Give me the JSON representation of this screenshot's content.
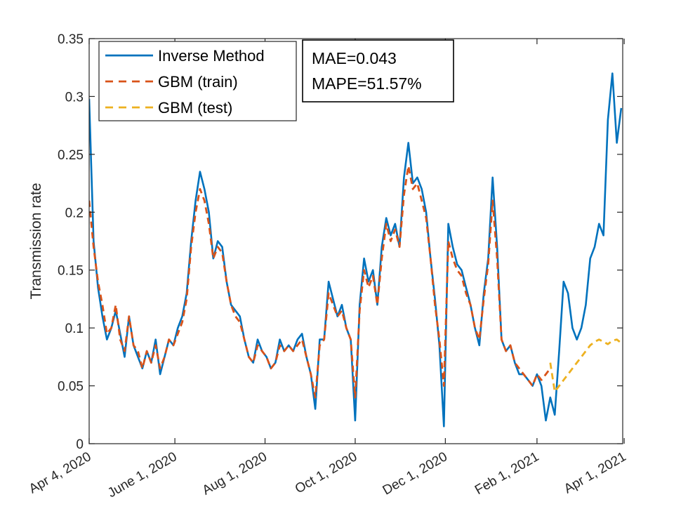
{
  "chart_data": {
    "type": "line",
    "title": "",
    "xlabel": "",
    "ylabel": "Transmission rate",
    "ylim": [
      0,
      0.35
    ],
    "xlim_days": [
      0,
      361
    ],
    "y_ticks": [
      0,
      0.05,
      0.1,
      0.15,
      0.2,
      0.25,
      0.3,
      0.35
    ],
    "y_tick_labels": [
      "0",
      "0.05",
      "0.1",
      "0.15",
      "0.2",
      "0.25",
      "0.3",
      "0.35"
    ],
    "x_ticks": [
      {
        "day": 0,
        "label": "Apr 4, 2020"
      },
      {
        "day": 58,
        "label": "June 1, 2020"
      },
      {
        "day": 119,
        "label": "Aug 1, 2020"
      },
      {
        "day": 180,
        "label": "Oct 1, 2020"
      },
      {
        "day": 241,
        "label": "Dec 1, 2020"
      },
      {
        "day": 303,
        "label": "Feb 1, 2021"
      },
      {
        "day": 362,
        "label": "Apr 1, 2021"
      }
    ],
    "legend_position": "top-left",
    "legend": [
      {
        "name": "Inverse Method",
        "color": "#0072BD",
        "style": "solid"
      },
      {
        "name": "GBM (train)",
        "color": "#D95319",
        "style": "dashed"
      },
      {
        "name": "GBM (test)",
        "color": "#EDB120",
        "style": "dashed"
      }
    ],
    "annotation": {
      "lines": [
        "MAE=0.043",
        "MAPE=51.57%"
      ]
    },
    "series": [
      {
        "name": "Inverse Method",
        "color": "#0072BD",
        "x": [
          0,
          3,
          6,
          9,
          12,
          15,
          18,
          21,
          24,
          27,
          30,
          33,
          36,
          39,
          42,
          45,
          48,
          51,
          54,
          57,
          60,
          63,
          66,
          69,
          72,
          75,
          78,
          81,
          84,
          87,
          90,
          93,
          96,
          99,
          102,
          105,
          108,
          111,
          114,
          117,
          120,
          123,
          126,
          129,
          132,
          135,
          138,
          141,
          144,
          147,
          150,
          153,
          156,
          159,
          162,
          165,
          168,
          171,
          174,
          177,
          180,
          183,
          186,
          189,
          192,
          195,
          198,
          201,
          204,
          207,
          210,
          213,
          216,
          219,
          222,
          225,
          228,
          231,
          234,
          237,
          240,
          243,
          246,
          249,
          252,
          255,
          258,
          261,
          264,
          267,
          270,
          273,
          276,
          279,
          282,
          285,
          288,
          291,
          294,
          297,
          300,
          303,
          306,
          309,
          312,
          315,
          318,
          321,
          324,
          327,
          330,
          333,
          336,
          339,
          342,
          345,
          348,
          351,
          354,
          357,
          360
        ],
        "values": [
          0.298,
          0.175,
          0.135,
          0.11,
          0.09,
          0.1,
          0.115,
          0.095,
          0.075,
          0.11,
          0.085,
          0.075,
          0.065,
          0.08,
          0.07,
          0.09,
          0.06,
          0.075,
          0.09,
          0.085,
          0.1,
          0.11,
          0.13,
          0.175,
          0.21,
          0.235,
          0.22,
          0.2,
          0.16,
          0.175,
          0.17,
          0.14,
          0.12,
          0.115,
          0.11,
          0.09,
          0.075,
          0.07,
          0.09,
          0.08,
          0.075,
          0.065,
          0.07,
          0.09,
          0.08,
          0.085,
          0.08,
          0.09,
          0.095,
          0.075,
          0.06,
          0.03,
          0.09,
          0.09,
          0.14,
          0.125,
          0.11,
          0.12,
          0.1,
          0.09,
          0.02,
          0.12,
          0.16,
          0.14,
          0.15,
          0.12,
          0.17,
          0.195,
          0.18,
          0.19,
          0.17,
          0.23,
          0.26,
          0.225,
          0.23,
          0.22,
          0.2,
          0.16,
          0.125,
          0.085,
          0.015,
          0.19,
          0.17,
          0.155,
          0.15,
          0.135,
          0.12,
          0.1,
          0.085,
          0.13,
          0.16,
          0.23,
          0.17,
          0.09,
          0.08,
          0.085,
          0.07,
          0.06,
          0.06,
          0.055,
          0.05,
          0.06,
          0.05,
          0.02,
          0.04,
          0.025,
          0.08,
          0.14,
          0.13,
          0.1,
          0.09,
          0.1,
          0.12,
          0.16,
          0.17,
          0.19,
          0.18,
          0.28,
          0.32,
          0.26,
          0.29
        ]
      },
      {
        "name": "GBM (train)",
        "color": "#D95319",
        "x": [
          0,
          3,
          6,
          9,
          12,
          15,
          18,
          21,
          24,
          27,
          30,
          33,
          36,
          39,
          42,
          45,
          48,
          51,
          54,
          57,
          60,
          63,
          66,
          69,
          72,
          75,
          78,
          81,
          84,
          87,
          90,
          93,
          96,
          99,
          102,
          105,
          108,
          111,
          114,
          117,
          120,
          123,
          126,
          129,
          132,
          135,
          138,
          141,
          144,
          147,
          150,
          153,
          156,
          159,
          162,
          165,
          168,
          171,
          174,
          177,
          180,
          183,
          186,
          189,
          192,
          195,
          198,
          201,
          204,
          207,
          210,
          213,
          216,
          219,
          222,
          225,
          228,
          231,
          234,
          237,
          240,
          243,
          246,
          249,
          252,
          255,
          258,
          261,
          264,
          267,
          270,
          273,
          276,
          279,
          282,
          285,
          288,
          291,
          294,
          297,
          300,
          303,
          306,
          309,
          312
        ],
        "values": [
          0.21,
          0.17,
          0.14,
          0.12,
          0.095,
          0.1,
          0.12,
          0.09,
          0.08,
          0.11,
          0.085,
          0.08,
          0.065,
          0.08,
          0.07,
          0.085,
          0.065,
          0.075,
          0.09,
          0.085,
          0.095,
          0.105,
          0.125,
          0.17,
          0.2,
          0.22,
          0.21,
          0.19,
          0.16,
          0.17,
          0.165,
          0.14,
          0.12,
          0.11,
          0.105,
          0.09,
          0.075,
          0.07,
          0.085,
          0.08,
          0.075,
          0.065,
          0.07,
          0.085,
          0.08,
          0.085,
          0.08,
          0.085,
          0.09,
          0.075,
          0.06,
          0.04,
          0.085,
          0.09,
          0.13,
          0.12,
          0.11,
          0.115,
          0.1,
          0.09,
          0.04,
          0.115,
          0.15,
          0.135,
          0.145,
          0.12,
          0.16,
          0.19,
          0.175,
          0.185,
          0.17,
          0.215,
          0.24,
          0.22,
          0.225,
          0.21,
          0.195,
          0.16,
          0.12,
          0.09,
          0.05,
          0.175,
          0.16,
          0.15,
          0.145,
          0.13,
          0.12,
          0.1,
          0.09,
          0.125,
          0.155,
          0.21,
          0.16,
          0.09,
          0.08,
          0.085,
          0.07,
          0.065,
          0.06,
          0.055,
          0.05,
          0.06,
          0.055,
          0.06,
          0.065
        ]
      },
      {
        "name": "GBM (test)",
        "color": "#EDB120",
        "x": [
          312,
          315,
          318,
          321,
          324,
          327,
          330,
          333,
          336,
          339,
          342,
          345,
          348,
          351,
          354,
          357,
          360
        ],
        "values": [
          0.07,
          0.045,
          0.05,
          0.055,
          0.06,
          0.065,
          0.07,
          0.075,
          0.08,
          0.085,
          0.088,
          0.09,
          0.088,
          0.086,
          0.089,
          0.09,
          0.087
        ]
      }
    ]
  }
}
